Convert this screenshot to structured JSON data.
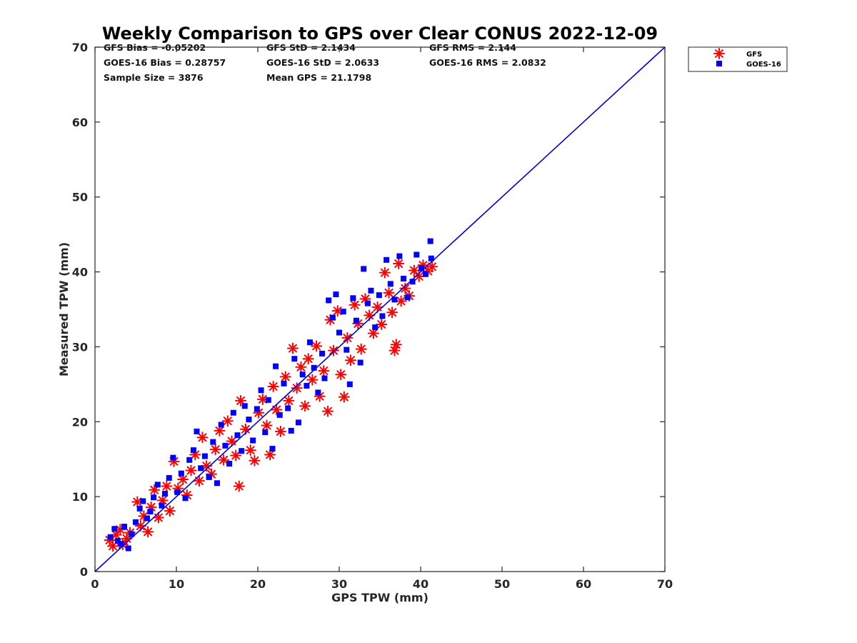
{
  "chart_data": {
    "type": "scatter",
    "title": "Weekly Comparison to GPS over Clear CONUS 2022-12-09",
    "xlabel": "GPS TPW (mm)",
    "ylabel": "Measured TPW (mm)",
    "xlim": [
      0,
      70
    ],
    "ylim": [
      0,
      70
    ],
    "xticks": [
      0,
      10,
      20,
      30,
      40,
      50,
      60,
      70
    ],
    "yticks": [
      0,
      10,
      20,
      30,
      40,
      50,
      60,
      70
    ],
    "grid": false,
    "legend_position": "outside top-right",
    "stats": [
      [
        "GFS Bias = -0.05202",
        "GFS StD = 2.1434",
        "GFS RMS = 2.144"
      ],
      [
        "GOES-16 Bias = 0.28757",
        "GOES-16 StD = 2.0633",
        "GOES-16 RMS = 2.0832"
      ],
      [
        "Sample Size = 3876",
        "Mean GPS = 21.1798",
        ""
      ]
    ],
    "one_to_one_line": {
      "x": [
        0,
        70
      ],
      "y": [
        0,
        70
      ],
      "color": "#0000dd"
    },
    "series": [
      {
        "name": "GFS",
        "marker": "asterisk",
        "color": "#ff0000",
        "points": [
          [
            1.8,
            4.2
          ],
          [
            2.2,
            3.4
          ],
          [
            2.6,
            4.9
          ],
          [
            3.1,
            5.6
          ],
          [
            3.4,
            3.6
          ],
          [
            3.9,
            4.4
          ],
          [
            4.3,
            5.2
          ],
          [
            5.2,
            9.3
          ],
          [
            5.6,
            6.1
          ],
          [
            6.0,
            7.4
          ],
          [
            6.5,
            5.3
          ],
          [
            6.9,
            8.6
          ],
          [
            7.3,
            10.9
          ],
          [
            7.8,
            7.2
          ],
          [
            8.3,
            9.5
          ],
          [
            8.8,
            11.4
          ],
          [
            9.2,
            8.1
          ],
          [
            9.7,
            14.7
          ],
          [
            10.2,
            11.1
          ],
          [
            10.8,
            12.3
          ],
          [
            11.3,
            10.2
          ],
          [
            11.8,
            13.5
          ],
          [
            12.3,
            15.6
          ],
          [
            12.8,
            12.1
          ],
          [
            13.2,
            17.9
          ],
          [
            13.7,
            14.1
          ],
          [
            14.3,
            13.0
          ],
          [
            14.8,
            16.3
          ],
          [
            15.3,
            18.8
          ],
          [
            15.8,
            14.9
          ],
          [
            16.3,
            20.1
          ],
          [
            16.8,
            17.4
          ],
          [
            17.3,
            15.5
          ],
          [
            17.7,
            11.4
          ],
          [
            17.9,
            22.8
          ],
          [
            18.5,
            19.0
          ],
          [
            19.1,
            16.2
          ],
          [
            19.6,
            14.8
          ],
          [
            20.1,
            21.2
          ],
          [
            20.6,
            23.0
          ],
          [
            21.1,
            19.5
          ],
          [
            21.5,
            15.6
          ],
          [
            21.9,
            24.7
          ],
          [
            22.3,
            21.6
          ],
          [
            22.8,
            18.7
          ],
          [
            23.4,
            26.0
          ],
          [
            23.8,
            22.8
          ],
          [
            24.3,
            29.8
          ],
          [
            24.8,
            24.5
          ],
          [
            25.3,
            27.3
          ],
          [
            25.8,
            22.1
          ],
          [
            26.2,
            28.4
          ],
          [
            26.7,
            25.6
          ],
          [
            27.2,
            30.1
          ],
          [
            27.6,
            23.4
          ],
          [
            28.1,
            26.8
          ],
          [
            28.6,
            21.4
          ],
          [
            28.9,
            33.6
          ],
          [
            29.3,
            29.5
          ],
          [
            29.8,
            34.8
          ],
          [
            30.2,
            26.3
          ],
          [
            30.6,
            23.3
          ],
          [
            31.0,
            31.2
          ],
          [
            31.4,
            28.2
          ],
          [
            31.9,
            35.6
          ],
          [
            32.3,
            33.1
          ],
          [
            32.7,
            29.7
          ],
          [
            33.2,
            36.4
          ],
          [
            33.7,
            34.2
          ],
          [
            34.2,
            31.8
          ],
          [
            34.7,
            35.3
          ],
          [
            35.2,
            33.0
          ],
          [
            35.6,
            39.9
          ],
          [
            36.1,
            37.2
          ],
          [
            36.5,
            34.6
          ],
          [
            36.8,
            29.5
          ],
          [
            37.0,
            30.3
          ],
          [
            37.3,
            41.1
          ],
          [
            37.6,
            36.1
          ],
          [
            38.1,
            37.8
          ],
          [
            38.6,
            36.8
          ],
          [
            39.2,
            40.2
          ],
          [
            39.8,
            39.4
          ],
          [
            40.3,
            40.9
          ],
          [
            40.9,
            40.1
          ],
          [
            41.4,
            40.7
          ]
        ]
      },
      {
        "name": "GOES-16",
        "marker": "square",
        "color": "#0000ff",
        "points": [
          [
            1.9,
            4.6
          ],
          [
            2.4,
            5.7
          ],
          [
            2.8,
            4.1
          ],
          [
            3.2,
            3.7
          ],
          [
            3.6,
            6.0
          ],
          [
            4.1,
            3.1
          ],
          [
            4.5,
            5.0
          ],
          [
            5.0,
            6.6
          ],
          [
            5.5,
            8.4
          ],
          [
            5.9,
            9.4
          ],
          [
            6.4,
            7.1
          ],
          [
            6.8,
            8.0
          ],
          [
            7.2,
            9.9
          ],
          [
            7.7,
            11.6
          ],
          [
            8.2,
            8.8
          ],
          [
            8.6,
            10.4
          ],
          [
            9.1,
            12.5
          ],
          [
            9.6,
            15.2
          ],
          [
            10.1,
            10.6
          ],
          [
            10.6,
            13.1
          ],
          [
            11.1,
            9.8
          ],
          [
            11.6,
            14.9
          ],
          [
            12.1,
            16.2
          ],
          [
            12.5,
            18.7
          ],
          [
            13.0,
            13.8
          ],
          [
            13.5,
            15.4
          ],
          [
            14.0,
            12.6
          ],
          [
            14.5,
            17.3
          ],
          [
            15.0,
            11.8
          ],
          [
            15.5,
            19.6
          ],
          [
            16.0,
            16.8
          ],
          [
            16.5,
            14.4
          ],
          [
            17.0,
            21.2
          ],
          [
            17.5,
            18.2
          ],
          [
            18.0,
            16.1
          ],
          [
            18.4,
            22.1
          ],
          [
            18.9,
            20.3
          ],
          [
            19.4,
            17.5
          ],
          [
            19.9,
            21.7
          ],
          [
            20.4,
            24.2
          ],
          [
            20.9,
            18.6
          ],
          [
            21.3,
            22.9
          ],
          [
            21.8,
            16.4
          ],
          [
            22.2,
            27.4
          ],
          [
            22.7,
            20.9
          ],
          [
            23.2,
            25.1
          ],
          [
            23.7,
            21.8
          ],
          [
            24.1,
            18.8
          ],
          [
            24.5,
            28.4
          ],
          [
            25.0,
            19.9
          ],
          [
            25.5,
            26.3
          ],
          [
            26.0,
            24.8
          ],
          [
            26.4,
            30.6
          ],
          [
            26.9,
            27.2
          ],
          [
            27.4,
            23.9
          ],
          [
            27.9,
            29.1
          ],
          [
            28.2,
            25.8
          ],
          [
            28.7,
            36.2
          ],
          [
            29.2,
            33.9
          ],
          [
            29.6,
            37.0
          ],
          [
            30.0,
            31.9
          ],
          [
            30.5,
            34.7
          ],
          [
            30.9,
            29.6
          ],
          [
            31.3,
            25.0
          ],
          [
            31.7,
            36.5
          ],
          [
            32.1,
            33.5
          ],
          [
            32.6,
            27.9
          ],
          [
            33.0,
            40.4
          ],
          [
            33.5,
            35.8
          ],
          [
            33.9,
            37.5
          ],
          [
            34.4,
            32.6
          ],
          [
            34.9,
            36.9
          ],
          [
            35.3,
            34.1
          ],
          [
            35.8,
            41.6
          ],
          [
            36.3,
            38.4
          ],
          [
            36.8,
            36.3
          ],
          [
            37.4,
            42.1
          ],
          [
            37.9,
            39.1
          ],
          [
            38.4,
            36.6
          ],
          [
            39.0,
            38.7
          ],
          [
            39.5,
            42.3
          ],
          [
            40.1,
            40.5
          ],
          [
            40.6,
            39.7
          ],
          [
            41.2,
            44.1
          ],
          [
            41.3,
            41.8
          ]
        ]
      }
    ]
  }
}
